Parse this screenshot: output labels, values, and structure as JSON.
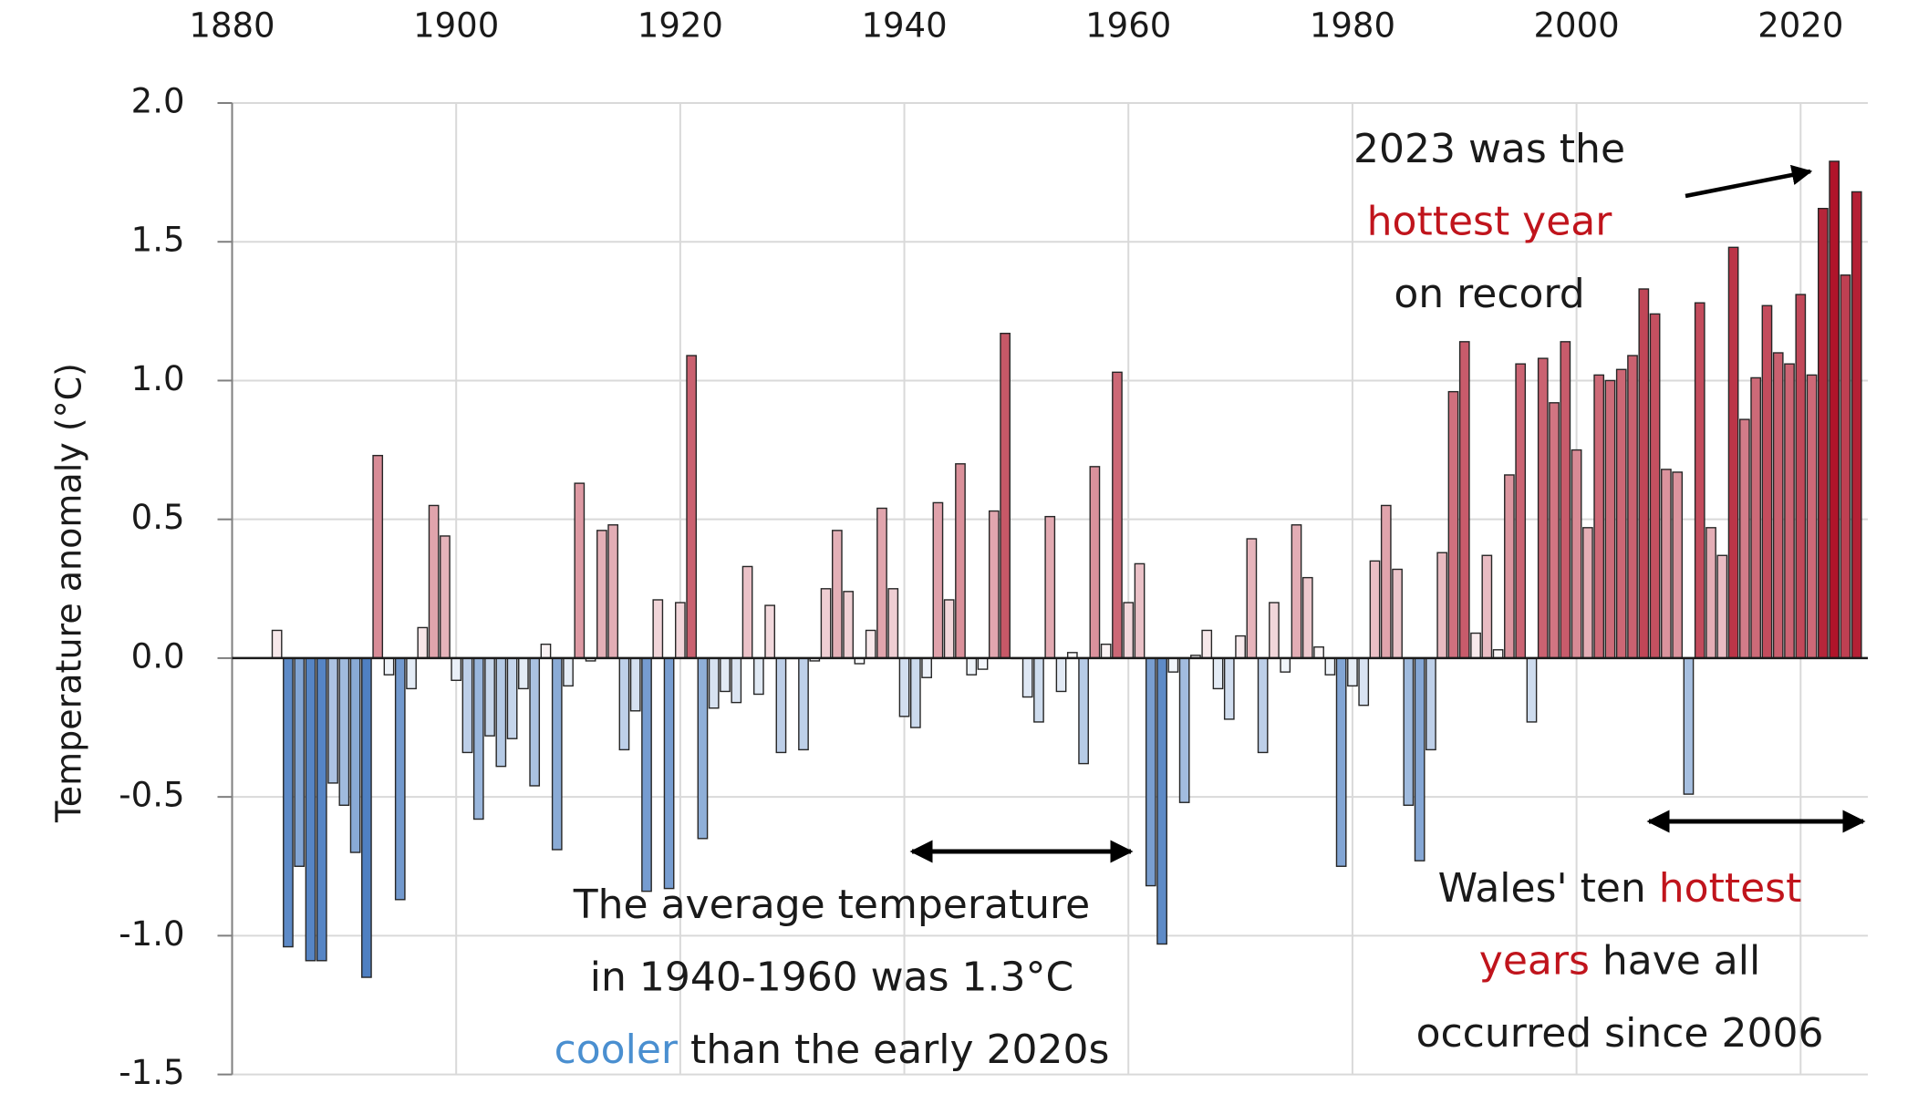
{
  "chart_data": {
    "type": "bar",
    "y_label": "Temperature anomaly (°C)",
    "x": [
      1884,
      1885,
      1886,
      1887,
      1888,
      1889,
      1890,
      1891,
      1892,
      1893,
      1894,
      1895,
      1896,
      1897,
      1898,
      1899,
      1900,
      1901,
      1902,
      1903,
      1904,
      1905,
      1906,
      1907,
      1908,
      1909,
      1910,
      1911,
      1912,
      1913,
      1914,
      1915,
      1916,
      1917,
      1918,
      1919,
      1920,
      1921,
      1922,
      1923,
      1924,
      1925,
      1926,
      1927,
      1928,
      1929,
      1930,
      1931,
      1932,
      1933,
      1934,
      1935,
      1936,
      1937,
      1938,
      1939,
      1940,
      1941,
      1942,
      1943,
      1944,
      1945,
      1946,
      1947,
      1948,
      1949,
      1950,
      1951,
      1952,
      1953,
      1954,
      1955,
      1956,
      1957,
      1958,
      1959,
      1960,
      1961,
      1962,
      1963,
      1964,
      1965,
      1966,
      1967,
      1968,
      1969,
      1970,
      1971,
      1972,
      1973,
      1974,
      1975,
      1976,
      1977,
      1978,
      1979,
      1980,
      1981,
      1982,
      1983,
      1984,
      1985,
      1986,
      1987,
      1988,
      1989,
      1990,
      1991,
      1992,
      1993,
      1994,
      1995,
      1996,
      1997,
      1998,
      1999,
      2000,
      2001,
      2002,
      2003,
      2004,
      2005,
      2006,
      2007,
      2008,
      2009,
      2010,
      2011,
      2012,
      2013,
      2014,
      2015,
      2016,
      2017,
      2018,
      2019,
      2020,
      2021,
      2022,
      2023,
      2024,
      2025
    ],
    "values": [
      0.1,
      -1.04,
      -0.75,
      -1.09,
      -1.09,
      -0.45,
      -0.53,
      -0.7,
      -1.15,
      0.73,
      -0.06,
      -0.87,
      -0.11,
      0.11,
      0.55,
      0.44,
      -0.08,
      -0.34,
      -0.58,
      -0.28,
      -0.39,
      -0.29,
      -0.11,
      -0.46,
      0.05,
      -0.69,
      -0.1,
      0.63,
      -0.01,
      0.46,
      0.48,
      -0.33,
      -0.19,
      -0.84,
      0.21,
      -0.83,
      0.2,
      1.09,
      -0.65,
      -0.18,
      -0.12,
      -0.16,
      0.33,
      -0.13,
      0.19,
      -0.34,
      0.0,
      -0.33,
      -0.01,
      0.25,
      0.46,
      0.24,
      -0.02,
      0.1,
      0.54,
      0.25,
      -0.21,
      -0.25,
      -0.07,
      0.56,
      0.21,
      0.7,
      -0.06,
      -0.04,
      0.53,
      1.17,
      0.0,
      -0.14,
      -0.23,
      0.51,
      -0.12,
      0.02,
      -0.38,
      0.69,
      0.05,
      1.03,
      0.2,
      0.34,
      -0.82,
      -1.03,
      -0.05,
      -0.52,
      0.01,
      0.1,
      -0.11,
      -0.22,
      0.08,
      0.43,
      -0.34,
      0.2,
      -0.05,
      0.48,
      0.29,
      0.04,
      -0.06,
      -0.75,
      -0.1,
      -0.17,
      0.35,
      0.55,
      0.32,
      -0.53,
      -0.73,
      -0.33,
      0.38,
      0.96,
      1.14,
      0.09,
      0.37,
      0.03,
      0.66,
      1.06,
      -0.23,
      1.08,
      0.92,
      1.14,
      0.75,
      0.47,
      1.02,
      1.0,
      1.04,
      1.09,
      1.33,
      1.24,
      0.68,
      0.67,
      -0.49,
      1.28,
      0.47,
      0.37,
      1.48,
      0.86,
      1.01,
      1.27,
      1.1,
      1.06,
      1.31,
      1.02,
      1.62,
      1.79,
      1.38,
      1.68
    ],
    "colormap": {
      "negative": "#4f80c2",
      "zero": "#ffffff",
      "positive": "#b0142a"
    },
    "bar_edge_color": "#262626",
    "xlim": [
      1880,
      2026
    ],
    "xticks": [
      1880,
      1900,
      1920,
      1940,
      1960,
      1980,
      2000,
      2020
    ],
    "ylim": [
      -1.5,
      2.0
    ],
    "yticks": [
      {
        "value": 2.0,
        "label": "2.0"
      },
      1.5,
      {
        "value": 1.0,
        "label": "1.0"
      },
      0.5,
      {
        "value": 0.0,
        "label": "0.0"
      },
      -0.5,
      {
        "value": -1.0,
        "label": "-1.0"
      },
      -1.5
    ],
    "grid": true,
    "annotations": [
      {
        "lines": [
          [
            {
              "text": "2023 was the"
            }
          ],
          [
            {
              "text": "hottest year",
              "color": "#c0141c"
            }
          ],
          [
            {
              "text": "on record"
            }
          ]
        ]
      },
      {
        "lines": [
          [
            {
              "text": "The average temperature"
            }
          ],
          [
            {
              "text": "in 1940-1960 was 1.3°C"
            }
          ],
          [
            {
              "text": "cooler",
              "color": "#4a8fd0"
            },
            {
              "text": " than the early 2020s"
            }
          ]
        ]
      },
      {
        "lines": [
          [
            {
              "text": "Wales' ten "
            },
            {
              "text": "hottest",
              "color": "#c0141c"
            }
          ],
          [
            {
              "text": "years",
              "color": "#c0141c"
            },
            {
              "text": " have all"
            }
          ],
          [
            {
              "text": "occurred since 2006"
            }
          ]
        ]
      }
    ]
  }
}
